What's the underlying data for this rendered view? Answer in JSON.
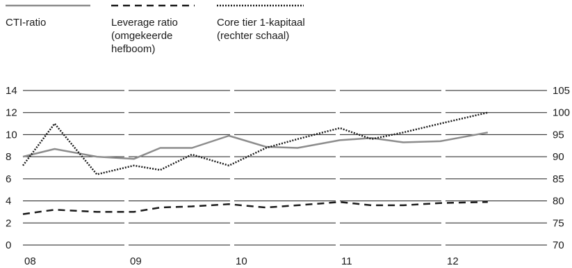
{
  "chart_data": {
    "type": "line",
    "categories": [
      "08",
      "09",
      "10",
      "11",
      "12"
    ],
    "x": [
      0,
      0.3,
      0.7,
      1.05,
      1.3,
      1.6,
      1.95,
      2.3,
      2.6,
      3.0,
      3.3,
      3.6,
      3.95,
      4.4
    ],
    "left_axis": {
      "ticks": [
        "14",
        "12",
        "10",
        "8",
        "6",
        "4",
        "2",
        "0"
      ],
      "ylim": [
        0,
        14
      ]
    },
    "right_axis": {
      "ticks": [
        "105",
        "100",
        "95",
        "90",
        "85",
        "80",
        "75",
        "70"
      ],
      "ylim": [
        70,
        105
      ]
    },
    "grid": true,
    "legend_position": "top",
    "series": [
      {
        "name": "CTI-ratio",
        "axis": "left",
        "style": "solid",
        "color": "#8c8c8c",
        "values": [
          8.0,
          8.7,
          8.0,
          7.8,
          8.8,
          8.8,
          9.9,
          8.9,
          8.8,
          9.5,
          9.7,
          9.3,
          9.4,
          10.2
        ]
      },
      {
        "name": "Leverage ratio\n(omgekeerde\nhefboom)",
        "axis": "left",
        "style": "dashed",
        "color": "#1a1a1a",
        "values": [
          2.8,
          3.2,
          3.0,
          3.0,
          3.4,
          3.5,
          3.7,
          3.4,
          3.6,
          3.9,
          3.6,
          3.6,
          3.8,
          3.9
        ]
      },
      {
        "name": "Core tier 1-kapitaal\n(rechter schaal)",
        "axis": "right",
        "style": "dotted",
        "color": "#1a1a1a",
        "values": [
          88,
          97.5,
          86,
          88,
          87,
          90.5,
          88,
          92,
          94,
          96.5,
          94,
          95.5,
          97.5,
          100
        ]
      }
    ]
  }
}
